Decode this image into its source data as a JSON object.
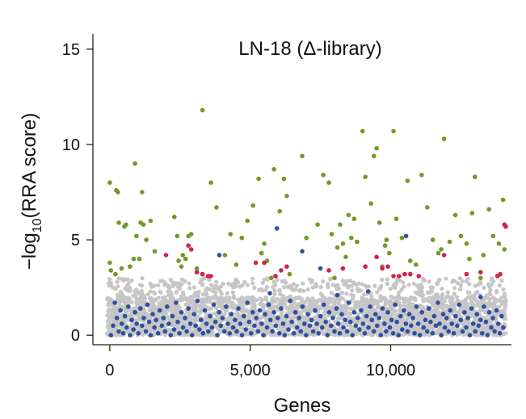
{
  "chart_data": {
    "type": "scatter",
    "title": "LN-18 (Δ-library)",
    "xlabel": "Genes",
    "ylabel_prefix": "−log",
    "ylabel_sub": "10",
    "ylabel_suffix": "(RRA score)",
    "xlim": [
      -600,
      14300
    ],
    "ylim": [
      -0.5,
      15.8
    ],
    "x_ticks": [
      0,
      5000,
      10000
    ],
    "x_tick_labels": [
      "0",
      "5,000",
      "10,000"
    ],
    "y_ticks": [
      0,
      5,
      10,
      15
    ],
    "y_tick_labels": [
      "0",
      "5",
      "10",
      "15"
    ],
    "grid": false,
    "legend": "none",
    "colors": {
      "background": "#c6c6c6",
      "blue": "#2f4fa0",
      "green": "#6f9a27",
      "red": "#d61f4a",
      "axis": "#222222"
    },
    "background_points": {
      "n": 3000,
      "x_range": [
        -100,
        14100
      ],
      "y_max": 3.0,
      "description_color": "background"
    },
    "blue_points": [
      [
        40,
        0.0
      ],
      [
        120,
        0.5
      ],
      [
        180,
        1.7
      ],
      [
        250,
        0.9
      ],
      [
        320,
        0.2
      ],
      [
        380,
        1.3
      ],
      [
        430,
        0.6
      ],
      [
        480,
        0.1
      ],
      [
        540,
        1.0
      ],
      [
        600,
        0.4
      ],
      [
        660,
        1.5
      ],
      [
        720,
        0.0
      ],
      [
        780,
        0.8
      ],
      [
        840,
        0.3
      ],
      [
        900,
        1.2
      ],
      [
        960,
        0.6
      ],
      [
        1020,
        0.1
      ],
      [
        1090,
        1.4
      ],
      [
        1150,
        0.5
      ],
      [
        1210,
        0.9
      ],
      [
        1280,
        0.2
      ],
      [
        1340,
        1.6
      ],
      [
        1400,
        0.7
      ],
      [
        1460,
        0.0
      ],
      [
        1530,
        1.1
      ],
      [
        1590,
        0.4
      ],
      [
        1650,
        0.8
      ],
      [
        1720,
        0.1
      ],
      [
        1780,
        1.3
      ],
      [
        1850,
        0.5
      ],
      [
        1910,
        0.9
      ],
      [
        1970,
        0.2
      ],
      [
        2040,
        1.5
      ],
      [
        2100,
        0.6
      ],
      [
        2170,
        0.0
      ],
      [
        2230,
        1.0
      ],
      [
        2290,
        0.3
      ],
      [
        2360,
        1.7
      ],
      [
        2420,
        0.7
      ],
      [
        2480,
        0.1
      ],
      [
        2550,
        1.2
      ],
      [
        2610,
        0.4
      ],
      [
        2680,
        0.9
      ],
      [
        2740,
        0.2
      ],
      [
        2800,
        1.4
      ],
      [
        2870,
        0.6
      ],
      [
        2930,
        0.0
      ],
      [
        3000,
        1.1
      ],
      [
        3060,
        0.5
      ],
      [
        3120,
        1.8
      ],
      [
        3190,
        0.3
      ],
      [
        3250,
        0.8
      ],
      [
        3320,
        0.1
      ],
      [
        3380,
        1.3
      ],
      [
        3440,
        0.6
      ],
      [
        3510,
        0.2
      ],
      [
        3570,
        1.0
      ],
      [
        3640,
        0.4
      ],
      [
        3700,
        1.6
      ],
      [
        3760,
        0.7
      ],
      [
        3830,
        0.0
      ],
      [
        3890,
        1.2
      ],
      [
        3950,
        0.5
      ],
      [
        4010,
        0.9
      ],
      [
        4080,
        0.2
      ],
      [
        4140,
        1.5
      ],
      [
        4200,
        0.6
      ],
      [
        4270,
        0.1
      ],
      [
        4330,
        1.1
      ],
      [
        4390,
        0.4
      ],
      [
        4460,
        0.8
      ],
      [
        4520,
        0.2
      ],
      [
        4580,
        1.4
      ],
      [
        4650,
        0.6
      ],
      [
        4710,
        0.0
      ],
      [
        4770,
        1.0
      ],
      [
        4840,
        0.3
      ],
      [
        4900,
        1.7
      ],
      [
        4960,
        0.7
      ],
      [
        5030,
        0.1
      ],
      [
        5090,
        1.2
      ],
      [
        5150,
        0.5
      ],
      [
        5220,
        0.9
      ],
      [
        5280,
        0.2
      ],
      [
        5340,
        1.3
      ],
      [
        5410,
        0.6
      ],
      [
        5470,
        0.0
      ],
      [
        5530,
        1.1
      ],
      [
        5600,
        0.4
      ],
      [
        5660,
        1.6
      ],
      [
        5720,
        0.8
      ],
      [
        5790,
        0.2
      ],
      [
        5850,
        1.2
      ],
      [
        5910,
        0.5
      ],
      [
        5980,
        0.9
      ],
      [
        6040,
        0.1
      ],
      [
        6100,
        1.4
      ],
      [
        6170,
        0.6
      ],
      [
        6230,
        0.0
      ],
      [
        6290,
        1.0
      ],
      [
        6360,
        0.3
      ],
      [
        6420,
        1.8
      ],
      [
        6480,
        0.7
      ],
      [
        6550,
        0.1
      ],
      [
        6610,
        1.2
      ],
      [
        6670,
        0.4
      ],
      [
        6740,
        0.9
      ],
      [
        6800,
        0.2
      ],
      [
        6860,
        1.5
      ],
      [
        6930,
        0.6
      ],
      [
        6990,
        0.0
      ],
      [
        7050,
        1.1
      ],
      [
        7120,
        0.5
      ],
      [
        7180,
        0.8
      ],
      [
        7240,
        0.2
      ],
      [
        7310,
        1.3
      ],
      [
        7370,
        0.6
      ],
      [
        7430,
        0.1
      ],
      [
        7500,
        1.0
      ],
      [
        7560,
        0.4
      ],
      [
        7620,
        1.6
      ],
      [
        7690,
        0.7
      ],
      [
        7750,
        0.0
      ],
      [
        7810,
        1.2
      ],
      [
        7880,
        0.5
      ],
      [
        7940,
        0.9
      ],
      [
        8000,
        0.2
      ],
      [
        8070,
        1.4
      ],
      [
        8130,
        0.6
      ],
      [
        8190,
        0.1
      ],
      [
        8260,
        1.1
      ],
      [
        8320,
        0.4
      ],
      [
        8380,
        0.8
      ],
      [
        8450,
        0.2
      ],
      [
        8510,
        1.7
      ],
      [
        8570,
        0.7
      ],
      [
        8640,
        0.0
      ],
      [
        8700,
        1.2
      ],
      [
        8760,
        0.5
      ],
      [
        8830,
        0.9
      ],
      [
        8890,
        0.3
      ],
      [
        8950,
        1.3
      ],
      [
        9020,
        0.6
      ],
      [
        9080,
        0.1
      ],
      [
        9140,
        1.0
      ],
      [
        9210,
        0.4
      ],
      [
        9270,
        1.5
      ],
      [
        9330,
        0.8
      ],
      [
        9400,
        0.2
      ],
      [
        9460,
        1.1
      ],
      [
        9520,
        0.5
      ],
      [
        9590,
        0.9
      ],
      [
        9650,
        0.0
      ],
      [
        9710,
        1.4
      ],
      [
        9780,
        0.6
      ],
      [
        9840,
        0.2
      ],
      [
        9900,
        1.2
      ],
      [
        9970,
        0.4
      ],
      [
        10030,
        0.8
      ],
      [
        10090,
        0.1
      ],
      [
        10160,
        1.6
      ],
      [
        10220,
        0.7
      ],
      [
        10280,
        0.0
      ],
      [
        10350,
        1.0
      ],
      [
        10410,
        0.3
      ],
      [
        10470,
        1.3
      ],
      [
        10540,
        0.6
      ],
      [
        10600,
        0.2
      ],
      [
        10660,
        1.1
      ],
      [
        10730,
        0.5
      ],
      [
        10790,
        0.9
      ],
      [
        10850,
        0.1
      ],
      [
        10920,
        1.5
      ],
      [
        10980,
        0.6
      ],
      [
        11040,
        0.0
      ],
      [
        11110,
        1.2
      ],
      [
        11170,
        0.4
      ],
      [
        11230,
        0.8
      ],
      [
        11300,
        0.2
      ],
      [
        11360,
        1.4
      ],
      [
        11420,
        0.7
      ],
      [
        11490,
        0.1
      ],
      [
        11550,
        1.0
      ],
      [
        11610,
        0.5
      ],
      [
        11680,
        1.7
      ],
      [
        11740,
        0.6
      ],
      [
        11800,
        0.0
      ],
      [
        11870,
        1.1
      ],
      [
        11930,
        0.4
      ],
      [
        11990,
        0.9
      ],
      [
        12060,
        0.2
      ],
      [
        12120,
        1.3
      ],
      [
        12180,
        0.6
      ],
      [
        12250,
        0.1
      ],
      [
        12310,
        1.0
      ],
      [
        12370,
        0.5
      ],
      [
        12440,
        1.6
      ],
      [
        12500,
        0.8
      ],
      [
        12560,
        0.2
      ],
      [
        12630,
        1.2
      ],
      [
        12690,
        0.4
      ],
      [
        12750,
        0.9
      ],
      [
        12820,
        0.0
      ],
      [
        12880,
        1.4
      ],
      [
        12940,
        0.6
      ],
      [
        13010,
        0.2
      ],
      [
        13070,
        1.1
      ],
      [
        13130,
        0.5
      ],
      [
        13200,
        0.8
      ],
      [
        13260,
        0.1
      ],
      [
        13320,
        1.5
      ],
      [
        13390,
        0.7
      ],
      [
        13450,
        0.0
      ],
      [
        13510,
        1.2
      ],
      [
        13580,
        0.4
      ],
      [
        13640,
        0.9
      ],
      [
        13700,
        0.2
      ],
      [
        13770,
        1.3
      ],
      [
        13830,
        0.6
      ],
      [
        13890,
        0.1
      ],
      [
        13950,
        1.0
      ],
      [
        14010,
        0.4
      ],
      [
        3900,
        4.2
      ],
      [
        5950,
        5.6
      ],
      [
        6850,
        4.4
      ],
      [
        7500,
        3.5
      ],
      [
        8100,
        2.1
      ],
      [
        10550,
        5.2
      ],
      [
        9200,
        2.3
      ],
      [
        5700,
        2.2
      ],
      [
        13200,
        2.0
      ]
    ],
    "green_points": [
      [
        0,
        8.0
      ],
      [
        230,
        7.6
      ],
      [
        290,
        7.5
      ],
      [
        900,
        9.0
      ],
      [
        1150,
        7.5
      ],
      [
        0,
        3.8
      ],
      [
        40,
        3.4
      ],
      [
        200,
        3.2
      ],
      [
        320,
        5.9
      ],
      [
        420,
        3.5
      ],
      [
        520,
        5.7
      ],
      [
        580,
        5.8
      ],
      [
        720,
        3.6
      ],
      [
        850,
        4.0
      ],
      [
        950,
        5.2
      ],
      [
        1050,
        4.0
      ],
      [
        1100,
        5.9
      ],
      [
        1200,
        5.8
      ],
      [
        1300,
        5.0
      ],
      [
        1450,
        6.0
      ],
      [
        1600,
        4.4
      ],
      [
        2300,
        6.2
      ],
      [
        2400,
        5.2
      ],
      [
        2450,
        3.9
      ],
      [
        2550,
        3.6
      ],
      [
        2600,
        4.2
      ],
      [
        2700,
        4.0
      ],
      [
        2800,
        5.2
      ],
      [
        2900,
        5.3
      ],
      [
        3100,
        3.5
      ],
      [
        3300,
        11.8
      ],
      [
        3600,
        8.0
      ],
      [
        3800,
        6.7
      ],
      [
        4100,
        4.2
      ],
      [
        4300,
        5.3
      ],
      [
        4500,
        3.7
      ],
      [
        4700,
        5.1
      ],
      [
        4900,
        6.0
      ],
      [
        5100,
        6.8
      ],
      [
        5300,
        8.2
      ],
      [
        5400,
        4.3
      ],
      [
        5500,
        4.8
      ],
      [
        5600,
        3.9
      ],
      [
        5750,
        3.0
      ],
      [
        5850,
        8.7
      ],
      [
        6050,
        6.5
      ],
      [
        6200,
        8.2
      ],
      [
        6300,
        7.3
      ],
      [
        6400,
        3.2
      ],
      [
        6850,
        9.4
      ],
      [
        7000,
        5.1
      ],
      [
        7400,
        5.8
      ],
      [
        7600,
        8.4
      ],
      [
        7800,
        8.0
      ],
      [
        7900,
        5.3
      ],
      [
        8000,
        3.0
      ],
      [
        8100,
        4.6
      ],
      [
        8200,
        5.8
      ],
      [
        8300,
        4.8
      ],
      [
        8400,
        4.1
      ],
      [
        8500,
        6.3
      ],
      [
        8600,
        5.1
      ],
      [
        8700,
        6.1
      ],
      [
        8800,
        4.9
      ],
      [
        9000,
        10.7
      ],
      [
        9100,
        8.3
      ],
      [
        9300,
        6.9
      ],
      [
        9400,
        9.4
      ],
      [
        9500,
        9.8
      ],
      [
        9600,
        5.9
      ],
      [
        9700,
        3.6
      ],
      [
        9850,
        5.0
      ],
      [
        9950,
        4.3
      ],
      [
        10100,
        10.7
      ],
      [
        10200,
        6.1
      ],
      [
        10400,
        5.1
      ],
      [
        10600,
        8.1
      ],
      [
        10700,
        3.9
      ],
      [
        10900,
        3.7
      ],
      [
        11100,
        8.4
      ],
      [
        11300,
        6.7
      ],
      [
        11500,
        5.0
      ],
      [
        11700,
        4.3
      ],
      [
        11900,
        10.3
      ],
      [
        12100,
        4.9
      ],
      [
        12300,
        6.3
      ],
      [
        12500,
        5.2
      ],
      [
        12700,
        4.8
      ],
      [
        12900,
        6.4
      ],
      [
        13000,
        8.3
      ],
      [
        13200,
        3.0
      ],
      [
        13300,
        4.2
      ],
      [
        13500,
        6.6
      ],
      [
        13650,
        5.2
      ],
      [
        13850,
        4.8
      ],
      [
        14000,
        7.1
      ],
      [
        14050,
        4.5
      ],
      [
        12800,
        4.0
      ],
      [
        11800,
        4.5
      ],
      [
        9800,
        4.7
      ]
    ],
    "red_points": [
      [
        2000,
        4.2
      ],
      [
        2800,
        4.7
      ],
      [
        2900,
        4.5
      ],
      [
        3100,
        3.3
      ],
      [
        3300,
        3.2
      ],
      [
        3500,
        3.1
      ],
      [
        3600,
        3.1
      ],
      [
        5200,
        3.8
      ],
      [
        5500,
        3.8
      ],
      [
        5900,
        3.1
      ],
      [
        6100,
        3.4
      ],
      [
        6300,
        3.6
      ],
      [
        7800,
        3.4
      ],
      [
        8300,
        3.5
      ],
      [
        9100,
        3.6
      ],
      [
        9500,
        4.1
      ],
      [
        9700,
        3.5
      ],
      [
        9900,
        3.6
      ],
      [
        10100,
        3.1
      ],
      [
        10300,
        3.1
      ],
      [
        10500,
        3.2
      ],
      [
        10700,
        3.2
      ],
      [
        11000,
        3.1
      ],
      [
        11900,
        4.2
      ],
      [
        12700,
        3.2
      ],
      [
        13200,
        3.3
      ],
      [
        13800,
        3.1
      ],
      [
        13900,
        3.2
      ],
      [
        14050,
        5.8
      ],
      [
        14100,
        5.7
      ]
    ]
  }
}
